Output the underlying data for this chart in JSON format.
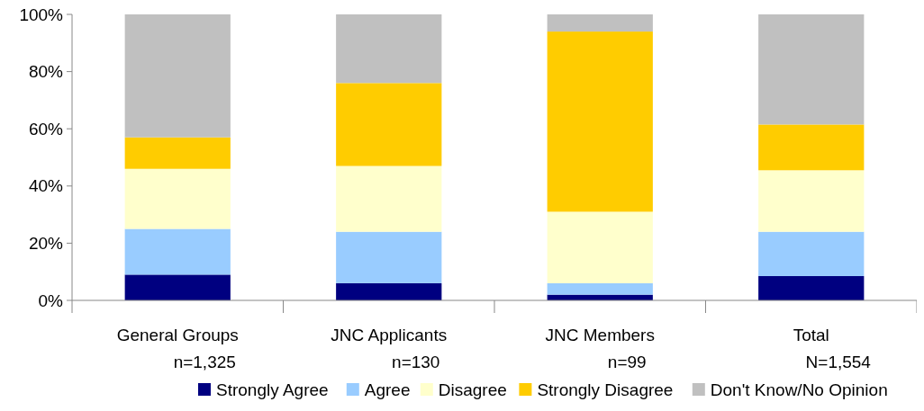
{
  "chart_data": {
    "type": "bar",
    "stacked": true,
    "categories": [
      "General Groups\nn=1,325",
      "JNC Applicants\nn=130",
      "JNC Members\nn=99",
      "Total\nN=1,554"
    ],
    "series": [
      {
        "name": "Strongly Agree",
        "color": "#000080",
        "values": [
          9,
          6,
          2,
          8.5
        ]
      },
      {
        "name": "Agree",
        "color": "#99ccff",
        "values": [
          16,
          18,
          4,
          15.5
        ]
      },
      {
        "name": "Disagree",
        "color": "#ffffcc",
        "values": [
          21,
          23,
          25,
          21.5
        ]
      },
      {
        "name": "Strongly Disagree",
        "color": "#ffcc00",
        "values": [
          11,
          29,
          63,
          16
        ]
      },
      {
        "name": "Don't Know/No Opinion",
        "color": "#c0c0c0",
        "values": [
          43,
          24,
          6,
          38.5
        ]
      }
    ],
    "ylim": [
      0,
      100
    ],
    "yticks": [
      {
        "value": 0,
        "label": "0%"
      },
      {
        "value": 20,
        "label": "20%"
      },
      {
        "value": 40,
        "label": "40%"
      },
      {
        "value": 60,
        "label": "60%"
      },
      {
        "value": 80,
        "label": "80%"
      },
      {
        "value": 100,
        "label": "100%"
      }
    ],
    "grid": false,
    "legend": "bottom"
  }
}
